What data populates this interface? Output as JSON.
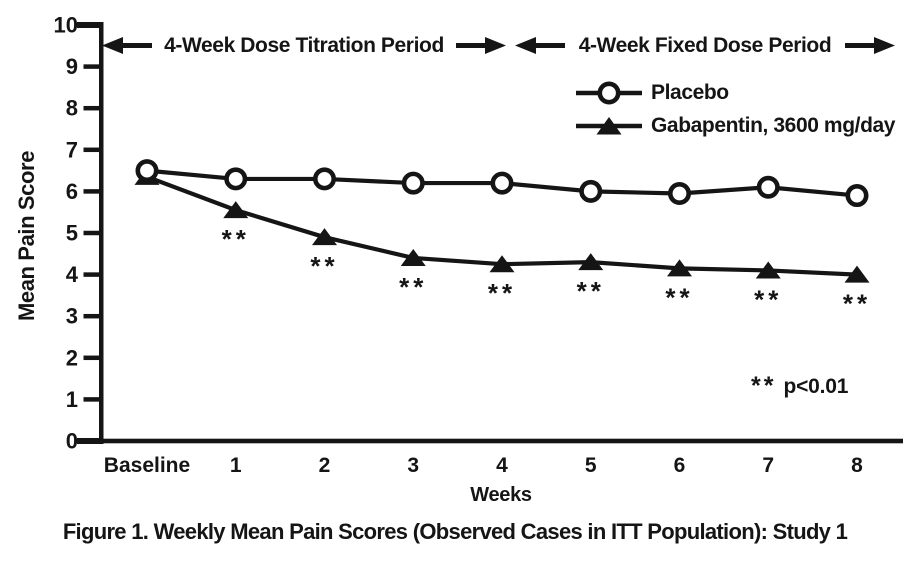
{
  "chart_data": {
    "type": "line",
    "caption": "Figure 1. Weekly Mean Pain Scores (Observed Cases in ITT Population): Study 1",
    "xlabel": "Weeks",
    "ylabel": "Mean Pain Score",
    "ylim": [
      0,
      10
    ],
    "yticks": [
      0,
      1,
      2,
      3,
      4,
      5,
      6,
      7,
      8,
      9,
      10
    ],
    "categories": [
      "Baseline",
      "1",
      "2",
      "3",
      "4",
      "5",
      "6",
      "7",
      "8"
    ],
    "series": [
      {
        "name": "Placebo",
        "marker": "open-circle",
        "values": [
          6.5,
          6.3,
          6.3,
          6.2,
          6.2,
          6.0,
          5.95,
          6.1,
          5.9
        ]
      },
      {
        "name": "Gabapentin, 3600 mg/day",
        "marker": "filled-triangle",
        "values": [
          6.35,
          5.55,
          4.9,
          4.4,
          4.25,
          4.3,
          4.15,
          4.1,
          4.0
        ],
        "significance_marker": "**",
        "significant_indices": [
          1,
          2,
          3,
          4,
          5,
          6,
          7,
          8
        ]
      }
    ],
    "period_annotations": [
      {
        "label": "4-Week Dose Titration Period",
        "from": "Baseline",
        "to": "4"
      },
      {
        "label": "4-Week Fixed Dose Period",
        "from": "4",
        "to": "8"
      }
    ],
    "footnote": {
      "stars": "**",
      "text": "p<0.01"
    },
    "legend_position": "top-right",
    "grid": false,
    "colors": {
      "foreground": "#151515",
      "background": "#ffffff"
    }
  }
}
